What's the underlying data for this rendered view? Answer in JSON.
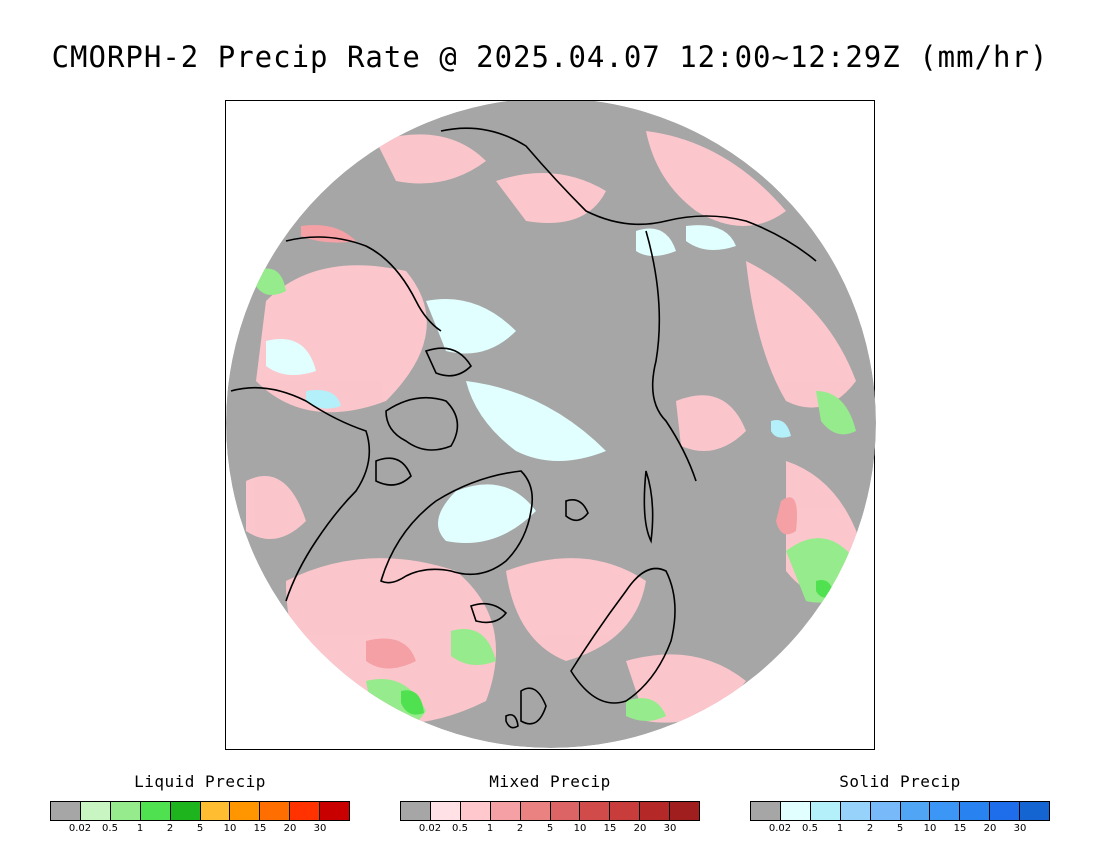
{
  "title": "CMORPH-2 Precip Rate @ 2025.04.07 12:00~12:29Z (mm/hr)",
  "map": {
    "projection": "north-polar-stereographic",
    "background_color": "#a6a6a6",
    "coastline_color": "#000000"
  },
  "legends": [
    {
      "id": "liquid",
      "title": "Liquid Precip",
      "colors": [
        "#a6a6a6",
        "#c8f5c2",
        "#96eb8c",
        "#50e150",
        "#1eb41e",
        "#ffbe32",
        "#ff9600",
        "#ff6e00",
        "#ff3200",
        "#c80000"
      ],
      "tick_labels": [
        "0.02",
        "0.5",
        "1",
        "2",
        "5",
        "10",
        "15",
        "20",
        "30"
      ]
    },
    {
      "id": "mixed",
      "title": "Mixed Precip",
      "colors": [
        "#a6a6a6",
        "#ffe1e6",
        "#ffc8cd",
        "#f5a0a5",
        "#eb8282",
        "#dc6464",
        "#d24b4b",
        "#c83c3c",
        "#b42828",
        "#a01e1e"
      ],
      "tick_labels": [
        "0.02",
        "0.5",
        "1",
        "2",
        "5",
        "10",
        "15",
        "20",
        "30"
      ]
    },
    {
      "id": "solid",
      "title": "Solid Precip",
      "colors": [
        "#a6a6a6",
        "#e1ffff",
        "#b4f0fa",
        "#96d2fa",
        "#78b9fa",
        "#50a5f5",
        "#3c96f5",
        "#2882f0",
        "#1e6eeb",
        "#1464d2"
      ],
      "tick_labels": [
        "0.02",
        "0.5",
        "1",
        "2",
        "5",
        "10",
        "15",
        "20",
        "30"
      ]
    }
  ]
}
